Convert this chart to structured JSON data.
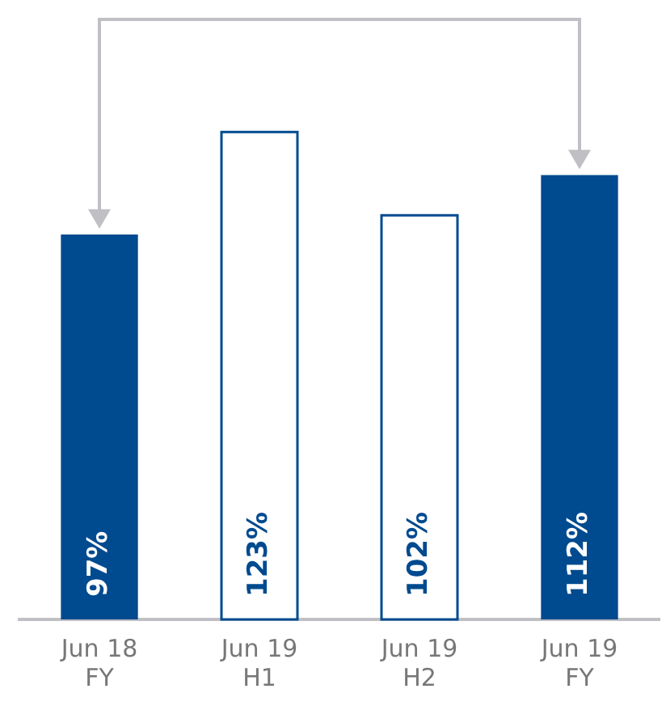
{
  "chart_data": {
    "type": "bar",
    "categories": [
      "Jun 18\nFY",
      "Jun 19\nH1",
      "Jun 19\nH2",
      "Jun 19\nFY"
    ],
    "values": [
      97,
      123,
      102,
      112
    ],
    "value_labels": [
      "97%",
      "123%",
      "102%",
      "112%"
    ],
    "color": "#004a8f",
    "colors": [
      "#004a8f",
      "#ffffff",
      "#ffffff",
      "#004a8f"
    ],
    "grid": false,
    "legend": false,
    "tick_labels": "x"
  }
}
